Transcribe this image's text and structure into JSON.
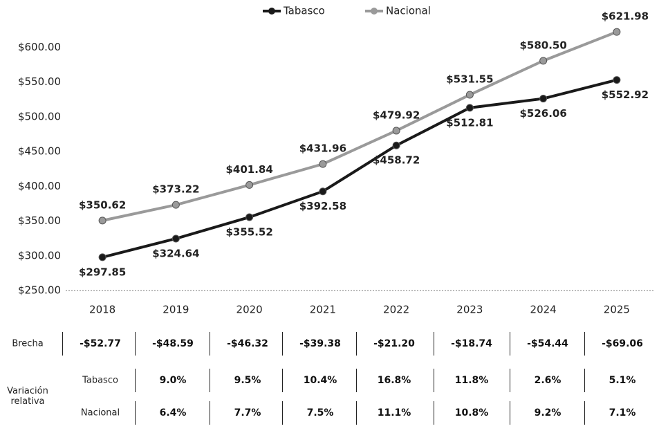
{
  "chart_data": {
    "type": "line",
    "categories": [
      "2018",
      "2019",
      "2020",
      "2021",
      "2022",
      "2023",
      "2024",
      "2025"
    ],
    "series": [
      {
        "name": "Tabasco",
        "color": "#1a1a1a",
        "values": [
          297.85,
          324.64,
          355.52,
          392.58,
          458.72,
          512.81,
          526.06,
          552.92
        ],
        "value_labels": [
          "$297.85",
          "$324.64",
          "$355.52",
          "$392.58",
          "$458.72",
          "$512.81",
          "$526.06",
          "$552.92"
        ]
      },
      {
        "name": "Nacional",
        "color": "#9a9a9a",
        "values": [
          350.62,
          373.22,
          401.84,
          431.96,
          479.92,
          531.55,
          580.5,
          621.98
        ],
        "value_labels": [
          "$350.62",
          "$373.22",
          "$401.84",
          "$431.96",
          "$479.92",
          "$531.55",
          "$580.50",
          "$621.98"
        ]
      }
    ],
    "ylim": [
      250,
      650
    ],
    "yticks": [
      {
        "value": 250,
        "label": "$250.00"
      },
      {
        "value": 300,
        "label": "$300.00"
      },
      {
        "value": 350,
        "label": "$350.00"
      },
      {
        "value": 400,
        "label": "$400.00"
      },
      {
        "value": 450,
        "label": "$450.00"
      },
      {
        "value": 500,
        "label": "$500.00"
      },
      {
        "value": 550,
        "label": "$550.00"
      },
      {
        "value": 600,
        "label": "$600.00"
      }
    ],
    "legend": "top"
  },
  "table": {
    "brecha_label": "Brecha",
    "brecha": [
      "-$52.77",
      "-$48.59",
      "-$46.32",
      "-$39.38",
      "-$21.20",
      "-$18.74",
      "-$54.44",
      "-$69.06"
    ],
    "variacion_label": "Variación relativa",
    "rows": [
      {
        "name": "Tabasco",
        "values": [
          "9.0%",
          "9.5%",
          "10.4%",
          "16.8%",
          "11.8%",
          "2.6%",
          "5.1%"
        ]
      },
      {
        "name": "Nacional",
        "values": [
          "6.4%",
          "7.7%",
          "7.5%",
          "11.1%",
          "10.8%",
          "9.2%",
          "7.1%"
        ]
      }
    ]
  }
}
